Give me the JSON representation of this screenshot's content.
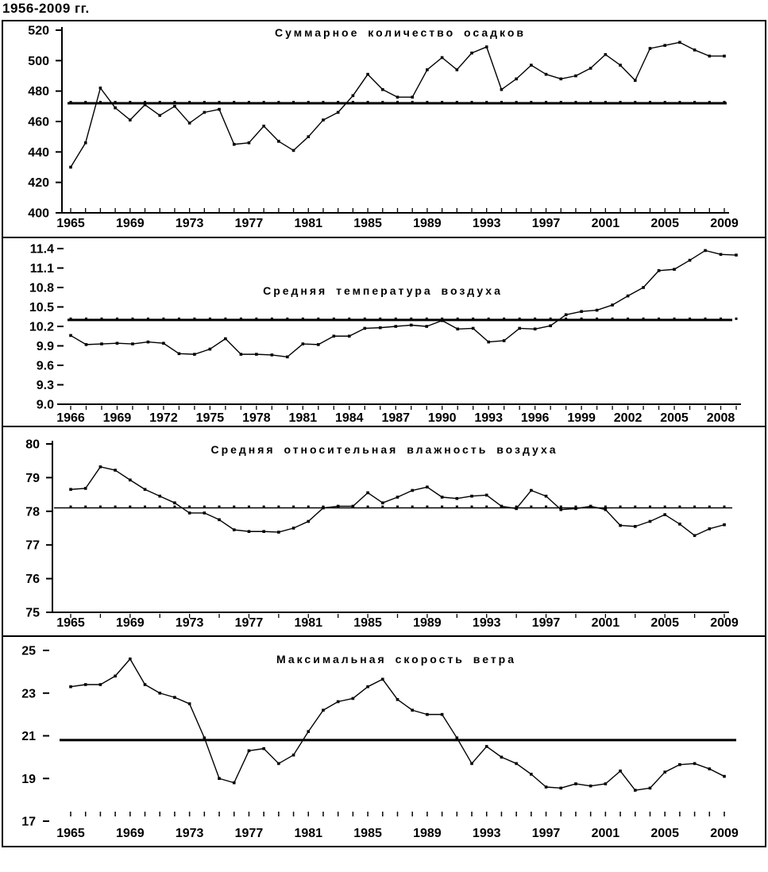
{
  "header": {
    "period_label": "1956-2009 гг."
  },
  "colors": {
    "ink": "#000000",
    "background": "#ffffff"
  },
  "chart_data": [
    {
      "type": "line",
      "title": "Суммарное количество осадков",
      "x_start": 1965,
      "x_end": 2009,
      "x_step": 1,
      "values": [
        430,
        446,
        482,
        469,
        461,
        471,
        464,
        470,
        459,
        466,
        468,
        445,
        446,
        457,
        447,
        441,
        450,
        461,
        466,
        477,
        491,
        481,
        476,
        476,
        494,
        502,
        494,
        505,
        509,
        481,
        488,
        497,
        491,
        488,
        490,
        495,
        504,
        497,
        487,
        508,
        510,
        512,
        507,
        503,
        503
      ],
      "mean": 472,
      "ylim": [
        400,
        520
      ],
      "y_tick_labels": [
        "520",
        "500",
        "480",
        "460",
        "440",
        "420",
        "400"
      ],
      "x_tick_years": [
        1965,
        1969,
        1973,
        1977,
        1981,
        1985,
        1989,
        1993,
        1997,
        2001,
        2005,
        2009
      ],
      "grid": false,
      "legend": "none"
    },
    {
      "type": "line",
      "title": "Средняя температура воздуха",
      "x_start": 1966,
      "x_end": 2009,
      "x_step": 1,
      "values": [
        10.06,
        9.92,
        9.93,
        9.94,
        9.93,
        9.96,
        9.94,
        9.78,
        9.77,
        9.85,
        10.01,
        9.77,
        9.77,
        9.76,
        9.73,
        9.93,
        9.92,
        10.05,
        10.05,
        10.17,
        10.18,
        10.2,
        10.22,
        10.2,
        10.29,
        10.16,
        10.17,
        9.96,
        9.98,
        10.17,
        10.16,
        10.21,
        10.38,
        10.43,
        10.45,
        10.53,
        10.67,
        10.8,
        11.06,
        11.08,
        11.22,
        11.37,
        11.31,
        11.3
      ],
      "mean": 10.3,
      "ylim": [
        9.0,
        11.4
      ],
      "y_tick_labels": [
        "11.4",
        "11.1",
        "10.8",
        "10.5",
        "10.2",
        "9.9",
        "9.6",
        "9.3",
        "9.0"
      ],
      "x_tick_years": [
        1966,
        1969,
        1972,
        1975,
        1978,
        1981,
        1984,
        1987,
        1990,
        1993,
        1996,
        1999,
        2002,
        2005,
        2008
      ],
      "grid": false,
      "legend": "none"
    },
    {
      "type": "line",
      "title": "Средняя относительная влажность воздуха",
      "x_start": 1965,
      "x_end": 2009,
      "x_step": 1,
      "values": [
        78.65,
        78.68,
        79.32,
        79.22,
        78.93,
        78.65,
        78.45,
        78.25,
        77.95,
        77.95,
        77.75,
        77.45,
        77.4,
        77.4,
        77.38,
        77.5,
        77.7,
        78.1,
        78.15,
        78.15,
        78.55,
        78.25,
        78.42,
        78.62,
        78.72,
        78.42,
        78.38,
        78.45,
        78.48,
        78.15,
        78.08,
        78.62,
        78.45,
        78.05,
        78.08,
        78.15,
        78.05,
        77.58,
        77.55,
        77.7,
        77.9,
        77.62,
        77.28,
        77.48,
        77.6
      ],
      "mean": 78.1,
      "ylim": [
        75,
        80
      ],
      "y_tick_labels": [
        "80",
        "79",
        "78",
        "77",
        "76",
        "75"
      ],
      "x_tick_years": [
        1965,
        1969,
        1973,
        1977,
        1981,
        1985,
        1989,
        1993,
        1997,
        2001,
        2005,
        2009
      ],
      "grid": false,
      "legend": "none"
    },
    {
      "type": "line",
      "title": "Максимальная скорость ветра",
      "x_start": 1965,
      "x_end": 2009,
      "x_step": 1,
      "values": [
        23.3,
        23.4,
        23.4,
        23.8,
        24.6,
        23.4,
        23.0,
        22.8,
        22.5,
        20.9,
        19.0,
        18.8,
        20.3,
        20.4,
        19.7,
        20.1,
        21.2,
        22.2,
        22.6,
        22.75,
        23.3,
        23.65,
        22.7,
        22.2,
        22.0,
        22.0,
        20.9,
        19.7,
        20.5,
        20.0,
        19.7,
        19.2,
        18.6,
        18.55,
        18.75,
        18.65,
        18.75,
        19.35,
        18.45,
        18.55,
        19.3,
        19.65,
        19.7,
        19.45,
        19.1
      ],
      "mean": 20.8,
      "ylim": [
        17,
        25
      ],
      "y_tick_labels": [
        "25",
        "23",
        "21",
        "19",
        "17"
      ],
      "x_tick_years": [
        1965,
        1969,
        1973,
        1977,
        1981,
        1985,
        1989,
        1993,
        1997,
        2001,
        2005,
        2009
      ],
      "grid": false,
      "legend": "none"
    }
  ]
}
